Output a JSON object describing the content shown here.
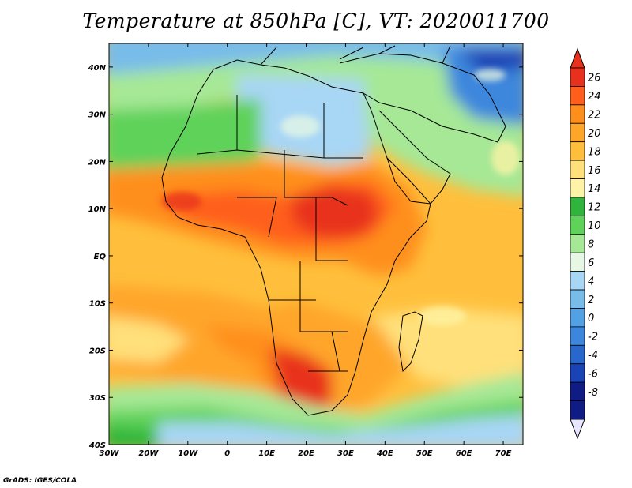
{
  "title": "Temperature at 850hPa [C], VT: 2020011700",
  "credit": "GrADS: IGES/COLA",
  "map": {
    "lon_range": [
      -30,
      75
    ],
    "lat_range": [
      -40,
      45
    ],
    "lon_ticks": [
      {
        "value": -30,
        "label": "30W"
      },
      {
        "value": -20,
        "label": "20W"
      },
      {
        "value": -10,
        "label": "10W"
      },
      {
        "value": 0,
        "label": "0"
      },
      {
        "value": 10,
        "label": "10E"
      },
      {
        "value": 20,
        "label": "20E"
      },
      {
        "value": 30,
        "label": "30E"
      },
      {
        "value": 40,
        "label": "40E"
      },
      {
        "value": 50,
        "label": "50E"
      },
      {
        "value": 60,
        "label": "60E"
      },
      {
        "value": 70,
        "label": "70E"
      }
    ],
    "lat_ticks": [
      {
        "value": 40,
        "label": "40N"
      },
      {
        "value": 30,
        "label": "30N"
      },
      {
        "value": 20,
        "label": "20N"
      },
      {
        "value": 10,
        "label": "10N"
      },
      {
        "value": 0,
        "label": "EQ"
      },
      {
        "value": -10,
        "label": "10S"
      },
      {
        "value": -20,
        "label": "20S"
      },
      {
        "value": -30,
        "label": "30S"
      },
      {
        "value": -40,
        "label": "40S"
      }
    ]
  },
  "colorbar": {
    "labels": [
      "26",
      "24",
      "22",
      "20",
      "18",
      "16",
      "14",
      "12",
      "10",
      "8",
      "6",
      "4",
      "2",
      "0",
      "-2",
      "-4",
      "-6",
      "-8"
    ],
    "colors": [
      "#e8311d",
      "#ff5e1c",
      "#ff8f1c",
      "#ffa62a",
      "#ffbf3c",
      "#ffe07a",
      "#fff4a6",
      "#2fb53b",
      "#5fd25a",
      "#a6e896",
      "#e6f8e4",
      "#a8d6f5",
      "#78bce9",
      "#52a1e4",
      "#3c87dd",
      "#2867cc",
      "#1a44b6",
      "#101c86",
      "#101c86"
    ],
    "over_color": "#e8311d",
    "under_color": "#e8e6ff"
  }
}
